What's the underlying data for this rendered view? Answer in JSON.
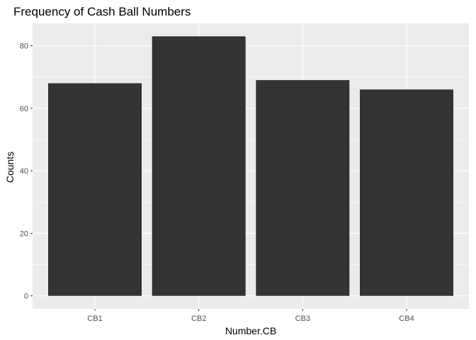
{
  "chart_data": {
    "type": "bar",
    "title": "Frequency of Cash Ball Numbers",
    "xlabel": "Number.CB",
    "ylabel": "Counts",
    "categories": [
      "CB1",
      "CB2",
      "CB3",
      "CB4"
    ],
    "values": [
      68,
      83,
      69,
      66
    ],
    "ylim": [
      -4.15,
      87.15
    ],
    "yticks": [
      0,
      20,
      40,
      60,
      80
    ],
    "grid": true,
    "legend": "none",
    "colors": {
      "bar": "#333333",
      "panel": "#ebebeb",
      "grid_major": "#ffffff",
      "tick_text": "#4d4d4d",
      "tick_mark": "#333333"
    }
  }
}
